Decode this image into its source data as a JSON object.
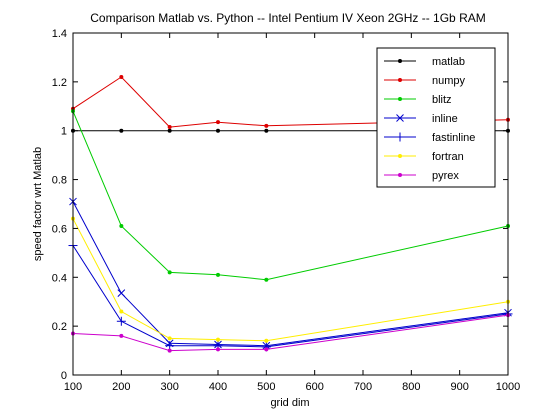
{
  "chart_data": {
    "type": "line",
    "title": "Comparison Matlab vs. Python -- Intel Pentium IV Xeon 2GHz -- 1Gb RAM",
    "xlabel": "grid dim",
    "ylabel": "speed factor wrt Matlab",
    "xlim": [
      100,
      1000
    ],
    "ylim": [
      0,
      1.4
    ],
    "x_ticks": [
      100,
      200,
      300,
      400,
      500,
      600,
      700,
      800,
      900,
      1000
    ],
    "y_ticks": [
      0,
      0.2,
      0.4,
      0.6,
      0.8,
      1,
      1.2,
      1.4
    ],
    "x": [
      100,
      200,
      300,
      400,
      500,
      1000
    ],
    "legend_position": "top-right",
    "grid": false,
    "series": [
      {
        "name": "matlab",
        "color": "#000000",
        "marker": "dot",
        "values": [
          1.0,
          1.0,
          1.0,
          1.0,
          1.0,
          1.0
        ]
      },
      {
        "name": "numpy",
        "color": "#dd0000",
        "marker": "dot",
        "values": [
          1.09,
          1.22,
          1.015,
          1.035,
          1.02,
          1.045
        ]
      },
      {
        "name": "blitz",
        "color": "#00cc00",
        "marker": "dot",
        "values": [
          1.08,
          0.61,
          0.42,
          0.41,
          0.39,
          0.61
        ]
      },
      {
        "name": "inline",
        "color": "#0000cc",
        "marker": "x",
        "values": [
          0.71,
          0.335,
          0.13,
          0.125,
          0.12,
          0.255
        ]
      },
      {
        "name": "fastinline",
        "color": "#0000cc",
        "marker": "plus",
        "values": [
          0.53,
          0.22,
          0.12,
          0.12,
          0.115,
          0.25
        ]
      },
      {
        "name": "fortran",
        "color": "#ffee00",
        "marker": "dot",
        "values": [
          0.64,
          0.26,
          0.15,
          0.145,
          0.14,
          0.3
        ]
      },
      {
        "name": "pyrex",
        "color": "#cc00cc",
        "marker": "dot",
        "values": [
          0.17,
          0.16,
          0.1,
          0.105,
          0.105,
          0.245
        ]
      }
    ]
  }
}
